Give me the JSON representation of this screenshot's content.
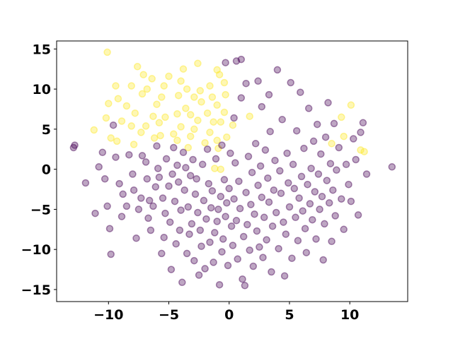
{
  "chart_data": {
    "type": "scatter",
    "title": "",
    "xlabel": "",
    "ylabel": "",
    "xlim": [
      -14.3,
      14.8
    ],
    "ylim": [
      -16.5,
      16.0
    ],
    "xticks": [
      -10,
      -5,
      0,
      5,
      10
    ],
    "yticks": [
      -15,
      -10,
      -5,
      0,
      5,
      10,
      15
    ],
    "xtick_labels": [
      "−10",
      "−5",
      "0",
      "5",
      "10"
    ],
    "ytick_labels": [
      "−15",
      "−10",
      "−5",
      "0",
      "5",
      "10",
      "15"
    ],
    "grid": false,
    "marker_alpha": 0.35,
    "colors": {
      "class_a": "#440154",
      "class_b": "#fde725"
    },
    "series": [
      {
        "color": "#fde725",
        "points": [
          [
            -10.1,
            14.6
          ],
          [
            -7.6,
            12.8
          ],
          [
            -7.1,
            11.8
          ],
          [
            -6.4,
            11.3
          ],
          [
            -5.0,
            11.6
          ],
          [
            -4.0,
            11.0
          ],
          [
            -3.8,
            12.5
          ],
          [
            -2.6,
            13.2
          ],
          [
            -1.0,
            12.4
          ],
          [
            -0.8,
            11.8
          ],
          [
            -9.4,
            10.4
          ],
          [
            -8.1,
            10.4
          ],
          [
            -6.8,
            10.0
          ],
          [
            -5.4,
            10.4
          ],
          [
            -3.5,
            10.0
          ],
          [
            -2.4,
            9.8
          ],
          [
            -1.6,
            10.4
          ],
          [
            -0.4,
            10.8
          ],
          [
            -9.2,
            8.8
          ],
          [
            -7.2,
            9.4
          ],
          [
            -5.6,
            9.0
          ],
          [
            -4.2,
            9.2
          ],
          [
            -2.9,
            9.0
          ],
          [
            -1.4,
            9.0
          ],
          [
            -0.3,
            9.3
          ],
          [
            -10.0,
            8.2
          ],
          [
            -8.5,
            7.9
          ],
          [
            -6.0,
            8.1
          ],
          [
            -3.6,
            7.6
          ],
          [
            -2.3,
            8.4
          ],
          [
            -1.0,
            8.0
          ],
          [
            -7.8,
            7.0
          ],
          [
            -6.3,
            6.6
          ],
          [
            -4.3,
            6.9
          ],
          [
            -3.2,
            6.8
          ],
          [
            -1.8,
            7.0
          ],
          [
            -0.4,
            7.1
          ],
          [
            -10.2,
            6.4
          ],
          [
            -8.9,
            6.0
          ],
          [
            -5.3,
            6.5
          ],
          [
            -2.6,
            6.1
          ],
          [
            -1.3,
            5.9
          ],
          [
            -11.2,
            4.9
          ],
          [
            -8.1,
            5.4
          ],
          [
            -6.9,
            5.4
          ],
          [
            -5.8,
            5.8
          ],
          [
            -4.0,
            5.3
          ],
          [
            -2.9,
            5.0
          ],
          [
            -1.6,
            4.6
          ],
          [
            -0.7,
            5.9
          ],
          [
            -9.8,
            3.9
          ],
          [
            -7.3,
            4.6
          ],
          [
            -5.7,
            4.2
          ],
          [
            -4.6,
            4.4
          ],
          [
            -3.2,
            4.1
          ],
          [
            -2.0,
            3.3
          ],
          [
            -0.2,
            4.0
          ],
          [
            -9.3,
            3.5
          ],
          [
            -6.2,
            3.9
          ],
          [
            -4.3,
            3.6
          ],
          [
            -1.0,
            3.6
          ],
          [
            -7.9,
            3.1
          ],
          [
            8.5,
            3.2
          ],
          [
            9.5,
            4.1
          ],
          [
            10.9,
            2.4
          ],
          [
            11.2,
            2.2
          ],
          [
            10.1,
            8.0
          ],
          [
            9.3,
            6.5
          ],
          [
            0.3,
            5.5
          ],
          [
            1.7,
            6.6
          ],
          [
            -0.9,
            2.6
          ],
          [
            -3.4,
            2.7
          ],
          [
            -1.2,
            0.1
          ],
          [
            -0.7,
            0.0
          ]
        ]
      },
      {
        "color": "#440154",
        "points": [
          [
            -12.9,
            2.7
          ],
          [
            -12.8,
            3.0
          ],
          [
            -11.9,
            -1.7
          ],
          [
            -11.1,
            -5.5
          ],
          [
            -10.8,
            0.3
          ],
          [
            -10.5,
            2.1
          ],
          [
            -10.3,
            -1.2
          ],
          [
            -10.1,
            -4.6
          ],
          [
            -9.9,
            -7.4
          ],
          [
            -9.8,
            -10.6
          ],
          [
            -9.6,
            5.5
          ],
          [
            -9.4,
            1.5
          ],
          [
            -9.1,
            -1.8
          ],
          [
            -8.9,
            -5.9
          ],
          [
            -8.8,
            -3.1
          ],
          [
            -8.5,
            -4.6
          ],
          [
            -8.3,
            1.8
          ],
          [
            -8.0,
            -0.6
          ],
          [
            -7.9,
            -2.6
          ],
          [
            -7.7,
            -8.6
          ],
          [
            -7.5,
            -5.0
          ],
          [
            -7.3,
            -3.6
          ],
          [
            -7.2,
            1.7
          ],
          [
            -6.9,
            0.9
          ],
          [
            -6.8,
            -1.2
          ],
          [
            -6.7,
            -6.1
          ],
          [
            -6.6,
            -3.9
          ],
          [
            -6.5,
            -7.6
          ],
          [
            -6.3,
            -4.6
          ],
          [
            -6.1,
            -2.2
          ],
          [
            -6.0,
            2.9
          ],
          [
            -5.9,
            0.1
          ],
          [
            -5.8,
            -1.0
          ],
          [
            -5.6,
            -10.5
          ],
          [
            -5.5,
            -3.6
          ],
          [
            -5.4,
            -8.5
          ],
          [
            -5.3,
            -5.5
          ],
          [
            -5.2,
            1.3
          ],
          [
            -5.0,
            -2.1
          ],
          [
            -4.9,
            -6.6
          ],
          [
            -4.8,
            -12.5
          ],
          [
            -4.7,
            -0.6
          ],
          [
            -4.6,
            2.7
          ],
          [
            -4.5,
            -4.0
          ],
          [
            -4.4,
            -9.3
          ],
          [
            -4.3,
            0.5
          ],
          [
            -4.2,
            -1.6
          ],
          [
            -4.1,
            -7.6
          ],
          [
            -4.0,
            -5.1
          ],
          [
            -3.9,
            -14.1
          ],
          [
            -3.8,
            2.1
          ],
          [
            -3.7,
            -2.6
          ],
          [
            -3.6,
            0.2
          ],
          [
            -3.5,
            -10.5
          ],
          [
            -3.4,
            -4.7
          ],
          [
            -3.3,
            -8.1
          ],
          [
            -3.2,
            -0.8
          ],
          [
            -3.1,
            -6.8
          ],
          [
            -3.0,
            1.2
          ],
          [
            -2.9,
            -11.4
          ],
          [
            -2.8,
            -3.1
          ],
          [
            -2.7,
            -1.2
          ],
          [
            -2.6,
            -5.4
          ],
          [
            -2.5,
            -13.2
          ],
          [
            -2.4,
            -7.6
          ],
          [
            -2.3,
            -9.6
          ],
          [
            -2.2,
            0.6
          ],
          [
            -2.1,
            -3.9
          ],
          [
            -2.0,
            -12.4
          ],
          [
            -1.9,
            -6.2
          ],
          [
            -1.8,
            2.5
          ],
          [
            -1.7,
            -1.8
          ],
          [
            -1.6,
            -9.1
          ],
          [
            -1.5,
            -4.8
          ],
          [
            -1.4,
            -2.7
          ],
          [
            -1.3,
            -11.6
          ],
          [
            -1.2,
            -7.9
          ],
          [
            -1.1,
            1.3
          ],
          [
            -1.0,
            -6.5
          ],
          [
            -0.9,
            -5.0
          ],
          [
            -0.8,
            -14.4
          ],
          [
            -0.7,
            -3.4
          ],
          [
            -0.6,
            -10.3
          ],
          [
            -0.5,
            -8.7
          ],
          [
            -0.4,
            -1.3
          ],
          [
            -0.3,
            -5.9
          ],
          [
            -0.2,
            -4.2
          ],
          [
            -0.1,
            -12.0
          ],
          [
            0.0,
            -2.4
          ],
          [
            0.1,
            2.0
          ],
          [
            0.2,
            -7.1
          ],
          [
            0.3,
            -9.5
          ],
          [
            0.4,
            -3.7
          ],
          [
            0.5,
            0.8
          ],
          [
            0.6,
            -6.4
          ],
          [
            0.7,
            -11.2
          ],
          [
            0.8,
            -1.5
          ],
          [
            0.9,
            -4.9
          ],
          [
            1.0,
            13.7
          ],
          [
            1.1,
            -13.7
          ],
          [
            1.2,
            -8.4
          ],
          [
            1.3,
            -14.5
          ],
          [
            1.4,
            -2.9
          ],
          [
            1.5,
            -6.9
          ],
          [
            1.6,
            1.6
          ],
          [
            1.7,
            -10.1
          ],
          [
            1.8,
            -4.4
          ],
          [
            1.9,
            -0.4
          ],
          [
            2.0,
            -12.1
          ],
          [
            2.1,
            -5.6
          ],
          [
            2.2,
            3.2
          ],
          [
            2.3,
            -7.7
          ],
          [
            2.4,
            -2.0
          ],
          [
            2.5,
            -9.7
          ],
          [
            2.6,
            0.4
          ],
          [
            2.7,
            -3.5
          ],
          [
            2.8,
            -11.0
          ],
          [
            2.9,
            -6.0
          ],
          [
            3.0,
            2.4
          ],
          [
            3.1,
            -8.8
          ],
          [
            3.2,
            -1.1
          ],
          [
            3.3,
            -4.1
          ],
          [
            3.4,
            4.7
          ],
          [
            3.5,
            -12.8
          ],
          [
            3.6,
            -7.1
          ],
          [
            3.7,
            -2.6
          ],
          [
            3.8,
            1.1
          ],
          [
            3.9,
            -5.4
          ],
          [
            4.0,
            12.4
          ],
          [
            4.1,
            -9.9
          ],
          [
            4.2,
            -0.2
          ],
          [
            4.3,
            -3.0
          ],
          [
            4.4,
            6.2
          ],
          [
            4.5,
            -6.6
          ],
          [
            4.6,
            -13.3
          ],
          [
            4.7,
            -8.1
          ],
          [
            4.8,
            2.0
          ],
          [
            4.9,
            -1.7
          ],
          [
            5.0,
            -4.7
          ],
          [
            5.1,
            10.8
          ],
          [
            5.2,
            -11.1
          ],
          [
            5.3,
            0.6
          ],
          [
            5.4,
            -2.4
          ],
          [
            5.5,
            -6.0
          ],
          [
            5.6,
            4.8
          ],
          [
            5.7,
            -8.9
          ],
          [
            5.8,
            -3.6
          ],
          [
            5.9,
            9.6
          ],
          [
            6.0,
            -0.9
          ],
          [
            6.1,
            -5.2
          ],
          [
            6.2,
            2.6
          ],
          [
            6.3,
            -7.4
          ],
          [
            6.4,
            -10.4
          ],
          [
            6.5,
            -1.9
          ],
          [
            6.6,
            7.6
          ],
          [
            6.7,
            -4.3
          ],
          [
            6.8,
            0.1
          ],
          [
            6.9,
            -6.3
          ],
          [
            7.0,
            3.5
          ],
          [
            7.1,
            -2.8
          ],
          [
            7.2,
            -8.7
          ],
          [
            7.3,
            5.6
          ],
          [
            7.4,
            -0.6
          ],
          [
            7.5,
            -5.0
          ],
          [
            7.6,
            1.9
          ],
          [
            7.7,
            -3.4
          ],
          [
            7.8,
            -11.3
          ],
          [
            7.9,
            -6.8
          ],
          [
            8.0,
            4.0
          ],
          [
            8.1,
            -1.4
          ],
          [
            8.2,
            8.3
          ],
          [
            8.3,
            -4.2
          ],
          [
            8.4,
            0.7
          ],
          [
            8.5,
            -9.0
          ],
          [
            8.6,
            -2.6
          ],
          [
            8.7,
            5.7
          ],
          [
            8.8,
            -5.8
          ],
          [
            8.9,
            -0.1
          ],
          [
            9.1,
            2.7
          ],
          [
            9.3,
            -3.7
          ],
          [
            9.5,
            -7.5
          ],
          [
            9.7,
            0.6
          ],
          [
            9.9,
            -1.9
          ],
          [
            10.1,
            -4.0
          ],
          [
            10.3,
            3.8
          ],
          [
            10.5,
            1.2
          ],
          [
            10.7,
            -5.7
          ],
          [
            10.9,
            4.6
          ],
          [
            11.1,
            5.8
          ],
          [
            11.4,
            -0.6
          ],
          [
            13.5,
            0.3
          ],
          [
            -0.3,
            13.3
          ],
          [
            0.6,
            13.5
          ],
          [
            1.4,
            10.7
          ],
          [
            2.4,
            11.0
          ],
          [
            3.3,
            9.3
          ],
          [
            0.4,
            6.4
          ],
          [
            1.0,
            8.9
          ],
          [
            2.7,
            7.8
          ],
          [
            -0.6,
            3.0
          ]
        ]
      }
    ]
  }
}
